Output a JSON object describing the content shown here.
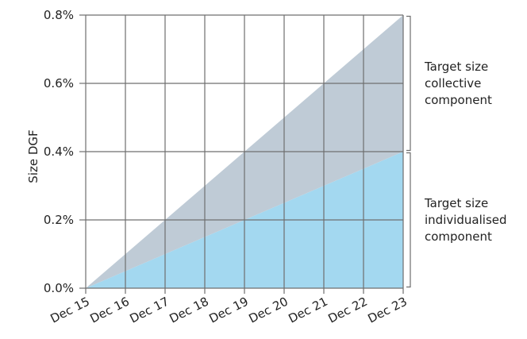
{
  "chart_data": {
    "type": "area",
    "stacked": true,
    "x": [
      "Dec 15",
      "Dec 16",
      "Dec 17",
      "Dec 18",
      "Dec 19",
      "Dec 20",
      "Dec 21",
      "Dec 22",
      "Dec 23"
    ],
    "series": [
      {
        "name": "Target size individualised component",
        "values": [
          0.0,
          0.05,
          0.1,
          0.15,
          0.2,
          0.25,
          0.3,
          0.35,
          0.4
        ],
        "color": "#a3d8f0"
      },
      {
        "name": "Target size collective component",
        "values": [
          0.0,
          0.05,
          0.1,
          0.15,
          0.2,
          0.25,
          0.3,
          0.35,
          0.4
        ],
        "color": "#bfcbd6"
      }
    ],
    "title": "",
    "xlabel": "",
    "ylabel": "Size DGF",
    "ylim": [
      0,
      0.8
    ],
    "yticks": [
      0,
      0.2,
      0.4,
      0.6,
      0.8
    ],
    "ytick_labels": [
      "0.0%",
      "0.2%",
      "0.4%",
      "0.6%",
      "0.8%"
    ],
    "grid": true,
    "legend": "right-brackets",
    "annotations": [
      {
        "text_lines": [
          "Target size",
          "collective",
          "component"
        ],
        "range": [
          0.4,
          0.8
        ]
      },
      {
        "text_lines": [
          "Target size",
          "individualised",
          "component"
        ],
        "range": [
          0.0,
          0.4
        ]
      }
    ]
  }
}
